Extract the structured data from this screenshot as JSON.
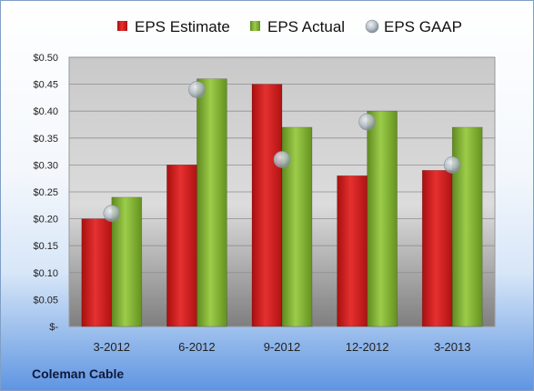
{
  "company_label": "Coleman Cable",
  "chart_data": {
    "type": "bar",
    "categories": [
      "3-2012",
      "6-2012",
      "9-2012",
      "12-2012",
      "3-2013"
    ],
    "series": [
      {
        "name": "EPS Estimate",
        "kind": "bar",
        "color": "#e02020",
        "values": [
          0.2,
          0.3,
          0.45,
          0.28,
          0.29
        ]
      },
      {
        "name": "EPS Actual",
        "kind": "bar",
        "color": "#8fbc3a",
        "values": [
          0.24,
          0.46,
          0.37,
          0.4,
          0.37
        ]
      },
      {
        "name": "EPS GAAP",
        "kind": "marker",
        "color": "#b8c2cc",
        "values": [
          0.21,
          0.44,
          0.31,
          0.38,
          0.3
        ]
      }
    ],
    "ylim": [
      0,
      0.5
    ],
    "yticks": [
      0,
      0.05,
      0.1,
      0.15,
      0.2,
      0.25,
      0.3,
      0.35,
      0.4,
      0.45,
      0.5
    ],
    "ytick_labels": [
      "$-",
      "$0.05",
      "$0.10",
      "$0.15",
      "$0.20",
      "$0.25",
      "$0.30",
      "$0.35",
      "$0.40",
      "$0.45",
      "$0.50"
    ],
    "legend_position": "top",
    "grid": true
  }
}
